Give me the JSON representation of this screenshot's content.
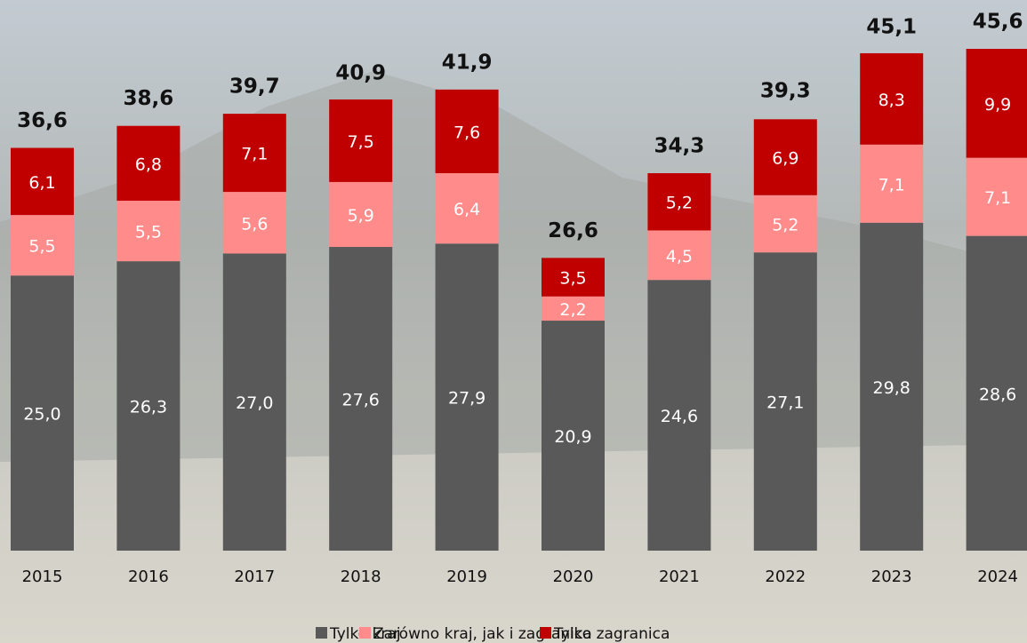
{
  "chart_data": {
    "type": "stacked-bar",
    "categories": [
      "2015",
      "2016",
      "2017",
      "2018",
      "2019",
      "2020",
      "2021",
      "2022",
      "2023",
      "2024"
    ],
    "series": [
      {
        "name": "Tylko kraj",
        "color": "#595959",
        "values": [
          25.0,
          26.3,
          27.0,
          27.6,
          27.9,
          20.9,
          24.6,
          27.1,
          29.8,
          28.6
        ],
        "value_labels": [
          "25,0",
          "26,3",
          "27,0",
          "27,6",
          "27,9",
          "20,9",
          "24,6",
          "27,1",
          "29,8",
          "28,6"
        ]
      },
      {
        "name": "Zarówno kraj, jak i zagranica",
        "color": "#ff8b8b",
        "values": [
          5.5,
          5.5,
          5.6,
          5.9,
          6.4,
          2.2,
          4.5,
          5.2,
          7.1,
          7.1
        ],
        "value_labels": [
          "5,5",
          "5,5",
          "5,6",
          "5,9",
          "6,4",
          "2,2",
          "4,5",
          "5,2",
          "7,1",
          "7,1"
        ]
      },
      {
        "name": "Tylko zagranica",
        "color": "#c00000",
        "values": [
          6.1,
          6.8,
          7.1,
          7.5,
          7.6,
          3.5,
          5.2,
          6.9,
          8.3,
          9.9
        ],
        "value_labels": [
          "6,1",
          "6,8",
          "7,1",
          "7,5",
          "7,6",
          "3,5",
          "5,2",
          "6,9",
          "8,3",
          "9,9"
        ]
      }
    ],
    "totals": [
      36.6,
      38.6,
      39.7,
      40.9,
      41.9,
      26.6,
      34.3,
      39.3,
      45.1,
      45.6
    ],
    "total_labels": [
      "36,6",
      "38,6",
      "39,7",
      "40,9",
      "41,9",
      "26,6",
      "34,3",
      "39,3",
      "45,1",
      "45,6"
    ]
  }
}
